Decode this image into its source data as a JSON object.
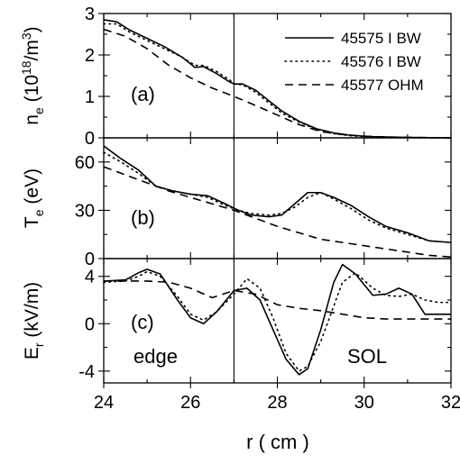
{
  "chart_data": {
    "type": "line",
    "xlabel": "r  ( cm )",
    "xlim": [
      24,
      32
    ],
    "x_ticks": [
      "24",
      "26",
      "28",
      "30",
      "32"
    ],
    "separator_x": 27,
    "legend": [
      "45575 I BW",
      "45576 I BW",
      "45577 OHM"
    ],
    "panels": [
      {
        "label": "(a)",
        "ylabel_main": "n",
        "ylabel_sub": "e",
        "ylabel_units_a": "(10",
        "ylabel_sup": "18",
        "ylabel_units_b": "/m",
        "ylabel_sup2": "3",
        "ylabel_units_c": ")",
        "ylim": [
          0,
          3
        ],
        "y_ticks": [
          "0",
          "1",
          "2",
          "3"
        ],
        "series": [
          {
            "name": "45575 I BW",
            "style": "solid",
            "x": [
              24.0,
              24.3,
              24.6,
              25.0,
              25.4,
              25.8,
              26.1,
              26.3,
              26.6,
              26.9,
              27.0,
              27.2,
              27.5,
              27.8,
              28.1,
              28.5,
              28.9,
              29.3,
              29.7,
              30.2,
              31.0,
              32.0
            ],
            "y": [
              2.85,
              2.8,
              2.6,
              2.4,
              2.2,
              1.95,
              1.7,
              1.72,
              1.55,
              1.35,
              1.3,
              1.3,
              1.15,
              0.9,
              0.65,
              0.4,
              0.22,
              0.12,
              0.06,
              0.03,
              0.01,
              0.0
            ]
          },
          {
            "name": "45576 I BW",
            "style": "dotted",
            "x": [
              24.0,
              24.3,
              24.6,
              25.0,
              25.4,
              25.8,
              26.1,
              26.3,
              26.6,
              26.9,
              27.0,
              27.2,
              27.5,
              27.8,
              28.1,
              28.5,
              28.9,
              29.3,
              29.7,
              30.2,
              31.0,
              32.0
            ],
            "y": [
              2.75,
              2.75,
              2.55,
              2.35,
              2.15,
              1.95,
              1.75,
              1.75,
              1.6,
              1.4,
              1.3,
              1.28,
              1.1,
              0.85,
              0.6,
              0.38,
              0.2,
              0.1,
              0.05,
              0.02,
              0.01,
              0.0
            ]
          },
          {
            "name": "45577 OHM",
            "style": "dashed",
            "x": [
              24.0,
              24.5,
              25.0,
              25.5,
              26.0,
              26.5,
              27.0,
              27.5,
              28.0,
              28.5,
              29.0,
              29.5,
              30.0,
              30.5,
              31.0,
              32.0
            ],
            "y": [
              2.62,
              2.45,
              2.15,
              1.75,
              1.45,
              1.2,
              1.0,
              0.78,
              0.55,
              0.32,
              0.15,
              0.08,
              0.04,
              0.02,
              0.01,
              0.0
            ]
          }
        ]
      },
      {
        "label": "(b)",
        "ylabel_main": "T",
        "ylabel_sub": "e",
        "ylabel_units_a": "(eV)",
        "ylim": [
          0,
          75
        ],
        "y_ticks": [
          "0",
          "30",
          "60"
        ],
        "series": [
          {
            "name": "45575 I BW",
            "style": "solid",
            "x": [
              24.0,
              24.4,
              24.8,
              25.2,
              25.6,
              26.0,
              26.4,
              26.8,
              27.1,
              27.4,
              27.8,
              28.1,
              28.4,
              28.7,
              29.0,
              29.3,
              29.7,
              30.1,
              30.5,
              31.0,
              31.5,
              32.0
            ],
            "y": [
              70,
              62,
              55,
              45,
              42,
              40,
              39,
              34,
              30,
              27,
              26,
              27,
              34,
              41,
              41,
              38,
              33,
              26,
              20,
              16,
              11,
              10
            ]
          },
          {
            "name": "45576 I BW",
            "style": "dotted",
            "x": [
              24.0,
              24.4,
              24.8,
              25.2,
              25.6,
              26.0,
              26.4,
              26.8,
              27.1,
              27.4,
              27.8,
              28.1,
              28.4,
              28.7,
              29.0,
              29.3,
              29.7,
              30.1,
              30.5,
              31.0,
              31.5,
              32.0
            ],
            "y": [
              66,
              60,
              53,
              45,
              42,
              40,
              38,
              33,
              30,
              28,
              27,
              28,
              32,
              38,
              41,
              37,
              31,
              24,
              19,
              15,
              11,
              10
            ]
          },
          {
            "name": "45577 OHM",
            "style": "dashed",
            "x": [
              24.0,
              24.5,
              25.0,
              25.5,
              26.0,
              26.5,
              27.0,
              27.5,
              28.0,
              28.5,
              29.0,
              29.5,
              30.0,
              30.5,
              31.0,
              31.5,
              32.0
            ],
            "y": [
              57,
              52,
              47,
              42,
              38,
              34,
              30,
              25,
              20,
              16,
              12,
              10,
              8,
              6,
              4,
              2,
              1
            ]
          }
        ]
      },
      {
        "label": "(c)",
        "ylabel_main": "E",
        "ylabel_sub": "r",
        "ylabel_units_a": "(kV/m)",
        "ylim": [
          -5,
          5.5
        ],
        "y_ticks": [
          "-4",
          "0",
          "4"
        ],
        "series": [
          {
            "name": "45575 I BW",
            "style": "solid",
            "x": [
              24.0,
              24.5,
              24.8,
              25.0,
              25.3,
              25.7,
              26.0,
              26.3,
              26.6,
              27.0,
              27.3,
              27.6,
              27.9,
              28.2,
              28.5,
              28.7,
              29.0,
              29.3,
              29.5,
              29.8,
              30.2,
              30.5,
              30.8,
              31.1,
              31.4,
              31.7,
              32.0
            ],
            "y": [
              3.6,
              3.7,
              4.3,
              4.6,
              4.2,
              2.0,
              0.5,
              0.0,
              1.0,
              2.8,
              3.0,
              2.0,
              -0.5,
              -3.0,
              -4.3,
              -3.8,
              -0.5,
              3.5,
              5.0,
              4.2,
              2.4,
              2.5,
              3.0,
              2.5,
              0.8,
              0.8,
              0.8
            ]
          },
          {
            "name": "45576 I BW",
            "style": "dotted",
            "x": [
              24.0,
              24.5,
              24.8,
              25.0,
              25.3,
              25.7,
              26.0,
              26.3,
              26.6,
              27.0,
              27.3,
              27.6,
              27.9,
              28.2,
              28.5,
              28.7,
              29.0,
              29.3,
              29.5,
              29.8,
              30.2,
              30.5,
              30.8,
              31.1,
              31.4,
              31.7,
              32.0
            ],
            "y": [
              3.5,
              3.6,
              4.0,
              4.4,
              4.0,
              2.3,
              0.8,
              0.3,
              1.0,
              2.5,
              3.8,
              3.0,
              0.5,
              -2.5,
              -4.0,
              -3.6,
              -1.5,
              1.5,
              3.5,
              4.3,
              3.0,
              2.4,
              2.3,
              2.5,
              2.0,
              1.8,
              1.8
            ]
          },
          {
            "name": "45577 OHM",
            "style": "dashed",
            "x": [
              24.0,
              24.5,
              25.0,
              25.5,
              26.0,
              26.5,
              27.0,
              27.5,
              28.0,
              28.5,
              29.0,
              29.5,
              30.0,
              30.5,
              31.0,
              31.5,
              32.0
            ],
            "y": [
              3.6,
              3.6,
              3.6,
              3.5,
              3.0,
              2.2,
              2.8,
              2.5,
              1.6,
              1.3,
              1.1,
              0.8,
              0.5,
              0.4,
              0.4,
              0.4,
              0.4
            ]
          }
        ]
      }
    ],
    "annotations": {
      "edge": "edge",
      "sol": "SOL"
    }
  }
}
